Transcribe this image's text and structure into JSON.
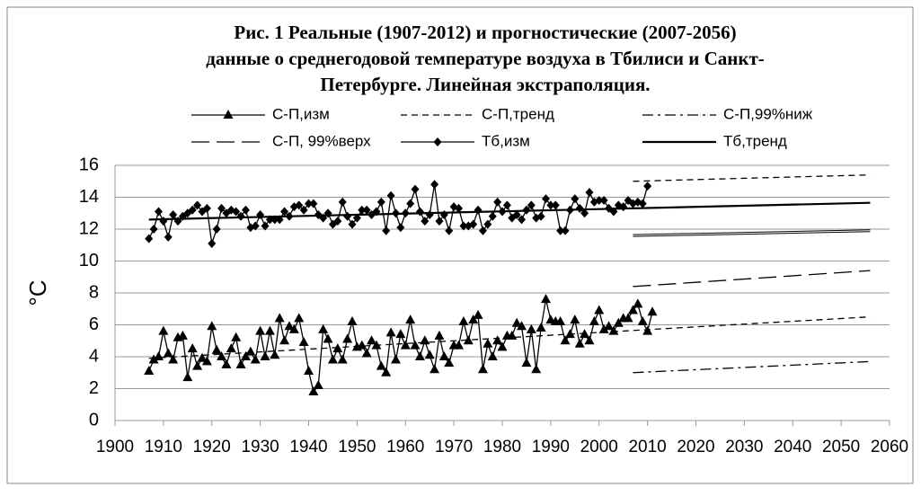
{
  "chart_data": {
    "type": "line",
    "title": [
      "Рис. 1  Реальные (1907-2012) и прогностические  (2007-2056)",
      "данные о  среднегодовой температуре воздуха в Тбилиси и Санкт-",
      "Петербурге.  Линейная экстраполяция."
    ],
    "y_label": "°C",
    "xlim": [
      1900,
      2060
    ],
    "xticks": [
      1900,
      1910,
      1920,
      1930,
      1940,
      1950,
      1960,
      1970,
      1980,
      1990,
      2000,
      2010,
      2020,
      2030,
      2040,
      2050,
      2060
    ],
    "ylim": [
      0,
      16
    ],
    "yticks": [
      0,
      2,
      4,
      6,
      8,
      10,
      12,
      14,
      16
    ],
    "grid": true,
    "series": [
      {
        "name": "С-П,изм",
        "color": "#000000",
        "line_style": "solid",
        "marker": "triangle",
        "x": [
          1907,
          1908,
          1909,
          1910,
          1911,
          1912,
          1913,
          1914,
          1915,
          1916,
          1917,
          1918,
          1919,
          1920,
          1921,
          1922,
          1923,
          1924,
          1925,
          1926,
          1927,
          1928,
          1929,
          1930,
          1931,
          1932,
          1933,
          1934,
          1935,
          1936,
          1937,
          1938,
          1939,
          1940,
          1941,
          1942,
          1943,
          1944,
          1945,
          1946,
          1947,
          1948,
          1949,
          1950,
          1951,
          1952,
          1953,
          1954,
          1955,
          1956,
          1957,
          1958,
          1959,
          1960,
          1961,
          1962,
          1963,
          1964,
          1965,
          1966,
          1967,
          1968,
          1969,
          1970,
          1971,
          1972,
          1973,
          1974,
          1975,
          1976,
          1977,
          1978,
          1979,
          1980,
          1981,
          1982,
          1983,
          1984,
          1985,
          1986,
          1987,
          1988,
          1989,
          1990,
          1991,
          1992,
          1993,
          1994,
          1995,
          1996,
          1997,
          1998,
          1999,
          2000,
          2001,
          2002,
          2003,
          2004,
          2005,
          2006,
          2007,
          2008,
          2009,
          2010,
          2011
        ],
        "values": [
          3.1,
          3.8,
          4.0,
          5.6,
          4.2,
          3.8,
          5.2,
          5.3,
          2.7,
          4.5,
          3.4,
          3.9,
          3.7,
          5.9,
          4.4,
          4.0,
          3.5,
          4.5,
          5.2,
          3.5,
          4.0,
          4.3,
          3.8,
          5.6,
          4.0,
          5.6,
          4.1,
          6.4,
          5.0,
          5.9,
          5.7,
          6.4,
          4.9,
          3.1,
          1.8,
          2.2,
          5.7,
          5.1,
          3.8,
          4.5,
          3.8,
          5.1,
          6.2,
          4.6,
          4.7,
          4.2,
          5.0,
          4.7,
          3.4,
          3.0,
          5.5,
          3.8,
          5.4,
          4.7,
          6.3,
          4.7,
          4.0,
          5.0,
          4.1,
          3.2,
          5.3,
          4.0,
          3.6,
          4.7,
          4.7,
          6.2,
          5.0,
          6.3,
          6.6,
          3.2,
          4.8,
          4.0,
          5.0,
          4.6,
          5.3,
          5.3,
          6.1,
          5.9,
          3.6,
          5.7,
          3.2,
          5.8,
          7.6,
          6.3,
          6.2,
          6.2,
          5.0,
          5.4,
          6.3,
          4.8,
          5.4,
          5.0,
          6.2,
          6.9,
          5.7,
          5.9,
          5.6,
          6.1,
          6.4,
          6.4,
          6.9,
          7.3,
          6.2,
          5.6,
          6.8
        ]
      },
      {
        "name": "С-П,тренд",
        "color": "#000000",
        "line_style": "dashed",
        "x": [
          1907,
          2056
        ],
        "values": [
          3.9,
          6.5
        ]
      },
      {
        "name": "С-П,99%ниж",
        "color": "#000000",
        "line_style": "dashdot",
        "x": [
          2007,
          2056
        ],
        "values": [
          3.0,
          3.7
        ]
      },
      {
        "name": "С-П, 99%верх",
        "color": "#000000",
        "line_style": "longdash",
        "x": [
          2007,
          2056
        ],
        "values": [
          8.4,
          9.4
        ]
      },
      {
        "name": "Тб,изм",
        "color": "#000000",
        "line_style": "solid",
        "marker": "diamond",
        "x": [
          1907,
          1908,
          1909,
          1910,
          1911,
          1912,
          1913,
          1914,
          1915,
          1916,
          1917,
          1918,
          1919,
          1920,
          1921,
          1922,
          1923,
          1924,
          1925,
          1926,
          1927,
          1928,
          1929,
          1930,
          1931,
          1932,
          1933,
          1934,
          1935,
          1936,
          1937,
          1938,
          1939,
          1940,
          1941,
          1942,
          1943,
          1944,
          1945,
          1946,
          1947,
          1948,
          1949,
          1950,
          1951,
          1952,
          1953,
          1954,
          1955,
          1956,
          1957,
          1958,
          1959,
          1960,
          1961,
          1962,
          1963,
          1964,
          1965,
          1966,
          1967,
          1968,
          1969,
          1970,
          1971,
          1972,
          1973,
          1974,
          1975,
          1976,
          1977,
          1978,
          1979,
          1980,
          1981,
          1982,
          1983,
          1984,
          1985,
          1986,
          1987,
          1988,
          1989,
          1990,
          1991,
          1992,
          1993,
          1994,
          1995,
          1996,
          1997,
          1998,
          1999,
          2000,
          2001,
          2002,
          2003,
          2004,
          2005,
          2006,
          2007,
          2008,
          2009,
          2010
        ],
        "values": [
          11.4,
          12.0,
          13.1,
          12.5,
          11.5,
          12.9,
          12.5,
          12.8,
          13.0,
          13.2,
          13.5,
          13.1,
          13.3,
          11.1,
          12.0,
          13.3,
          13.0,
          13.2,
          13.1,
          12.8,
          13.2,
          12.1,
          12.2,
          12.9,
          12.2,
          12.6,
          12.6,
          12.6,
          13.1,
          12.8,
          13.4,
          13.5,
          13.2,
          13.6,
          13.6,
          12.9,
          12.7,
          13.0,
          12.3,
          12.5,
          13.7,
          12.8,
          12.3,
          12.7,
          13.2,
          13.2,
          12.9,
          13.1,
          13.7,
          11.9,
          14.1,
          13.0,
          12.1,
          13.0,
          13.6,
          14.5,
          13.1,
          12.5,
          12.9,
          14.8,
          12.5,
          12.9,
          11.9,
          13.4,
          13.3,
          12.2,
          12.2,
          12.3,
          13.2,
          11.9,
          12.3,
          12.8,
          13.7,
          13.1,
          13.5,
          12.7,
          12.9,
          12.6,
          13.2,
          13.5,
          12.7,
          12.8,
          13.9,
          13.5,
          13.5,
          11.9,
          11.9,
          13.2,
          13.9,
          13.3,
          13.0,
          14.3,
          13.7,
          13.8,
          13.8,
          13.3,
          13.1,
          13.5,
          13.4,
          13.8,
          13.6,
          13.7,
          13.6,
          14.7
        ]
      },
      {
        "name": "Тб,тренд",
        "color": "#000000",
        "line_style": "solid",
        "line_width": 2.2,
        "x": [
          1907,
          2056
        ],
        "values": [
          12.6,
          13.65
        ]
      },
      {
        "color": "#000000",
        "line_style": "dashed",
        "x": [
          2007,
          2056
        ],
        "values": [
          15.0,
          15.4
        ]
      },
      {
        "color": "#000000",
        "line_style": "double",
        "x": [
          2007,
          2056
        ],
        "values": [
          11.6,
          11.9
        ]
      }
    ]
  }
}
